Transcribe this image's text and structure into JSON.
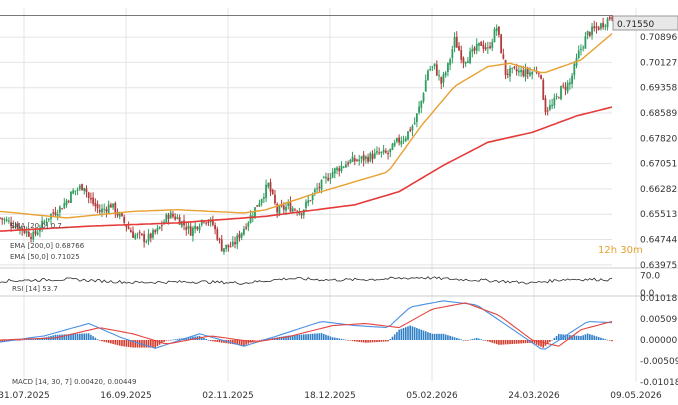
{
  "chart_data": {
    "type": "candlestick",
    "timeframe_label": "12h 30m",
    "price": {
      "last": 0.7155,
      "last_label": "0.71550",
      "ylim": [
        0.6397,
        0.7178
      ],
      "y_ticks": [
        "0.71550",
        "0.70896",
        "0.70127",
        "0.69358",
        "0.68589",
        "0.67820",
        "0.67051",
        "0.66282",
        "0.65513",
        "0.64744",
        "0.63975"
      ],
      "x_ticks": [
        "31.07.2025",
        "16.09.2025",
        "02.11.2025",
        "18.12.2025",
        "05.02.2026",
        "24.03.2026",
        "09.05.2026"
      ],
      "legend": [
        "EMA [20,0] 0.7...",
        "EMA [200,0] 0.68766",
        "EMA [50,0] 0.71025"
      ],
      "close_path": [
        [
          0,
          0.654
        ],
        [
          8,
          0.6515
        ],
        [
          15,
          0.6485
        ],
        [
          22,
          0.6545
        ],
        [
          28,
          0.6575
        ],
        [
          33,
          0.662
        ],
        [
          38,
          0.664
        ],
        [
          40,
          0.66
        ],
        [
          45,
          0.656
        ],
        [
          50,
          0.658
        ],
        [
          55,
          0.6535
        ],
        [
          60,
          0.649
        ],
        [
          66,
          0.6475
        ],
        [
          71,
          0.65
        ],
        [
          76,
          0.655
        ],
        [
          80,
          0.654
        ],
        [
          86,
          0.65
        ],
        [
          92,
          0.654
        ],
        [
          96,
          0.652
        ],
        [
          100,
          0.645
        ],
        [
          105,
          0.6455
        ],
        [
          110,
          0.651
        ],
        [
          116,
          0.658
        ],
        [
          121,
          0.664
        ],
        [
          125,
          0.656
        ],
        [
          130,
          0.6575
        ],
        [
          136,
          0.656
        ],
        [
          142,
          0.662
        ],
        [
          150,
          0.668
        ],
        [
          157,
          0.671
        ],
        [
          164,
          0.672
        ],
        [
          171,
          0.6735
        ],
        [
          175,
          0.6735
        ],
        [
          179,
          0.677
        ],
        [
          183,
          0.679
        ],
        [
          187,
          0.683
        ],
        [
          190,
          0.6895
        ],
        [
          193,
          0.699
        ],
        [
          196,
          0.7
        ],
        [
          199,
          0.695
        ],
        [
          202,
          0.7
        ],
        [
          205,
          0.708
        ],
        [
          209,
          0.702
        ],
        [
          213,
          0.704
        ],
        [
          217,
          0.707
        ],
        [
          220,
          0.705
        ],
        [
          224,
          0.712
        ],
        [
          228,
          0.698
        ],
        [
          233,
          0.6985
        ],
        [
          238,
          0.698
        ],
        [
          243,
          0.699
        ],
        [
          246,
          0.687
        ],
        [
          249,
          0.688
        ],
        [
          253,
          0.693
        ],
        [
          257,
          0.695
        ],
        [
          261,
          0.704
        ],
        [
          265,
          0.71
        ],
        [
          270,
          0.712
        ],
        [
          276,
          0.7155
        ]
      ],
      "ema_20": [
        [
          0,
          0.654
        ],
        [
          40,
          0.656
        ],
        [
          60,
          0.652
        ],
        [
          80,
          0.654
        ],
        [
          100,
          0.652
        ],
        [
          120,
          0.656
        ],
        [
          140,
          0.66
        ],
        [
          160,
          0.672
        ],
        [
          180,
          0.679
        ],
        [
          200,
          0.692
        ],
        [
          220,
          0.703
        ],
        [
          240,
          0.7
        ],
        [
          260,
          0.699
        ],
        [
          276,
          0.713
        ]
      ],
      "ema_50": [
        [
          0,
          0.656
        ],
        [
          30,
          0.654
        ],
        [
          60,
          0.656
        ],
        [
          80,
          0.6565
        ],
        [
          110,
          0.6555
        ],
        [
          120,
          0.6565
        ],
        [
          140,
          0.661
        ],
        [
          160,
          0.665
        ],
        [
          175,
          0.668
        ],
        [
          190,
          0.682
        ],
        [
          205,
          0.694
        ],
        [
          220,
          0.7
        ],
        [
          230,
          0.701
        ],
        [
          245,
          0.698
        ],
        [
          262,
          0.702
        ],
        [
          276,
          0.71
        ]
      ],
      "ema_200": [
        [
          0,
          0.65
        ],
        [
          40,
          0.6515
        ],
        [
          80,
          0.6525
        ],
        [
          120,
          0.6545
        ],
        [
          160,
          0.658
        ],
        [
          180,
          0.662
        ],
        [
          200,
          0.67
        ],
        [
          220,
          0.677
        ],
        [
          240,
          0.68
        ],
        [
          260,
          0.685
        ],
        [
          276,
          0.6877
        ]
      ]
    },
    "rsi": {
      "label": "RSI [14] 53.7",
      "value": 53.7,
      "ylim": [
        0,
        100
      ],
      "y_ticks": [
        "70.0",
        "0.0"
      ],
      "series": [
        [
          0,
          48
        ],
        [
          30,
          55
        ],
        [
          60,
          42
        ],
        [
          90,
          45
        ],
        [
          110,
          40
        ],
        [
          130,
          58
        ],
        [
          150,
          52
        ],
        [
          170,
          55
        ],
        [
          190,
          62
        ],
        [
          205,
          55
        ],
        [
          220,
          50
        ],
        [
          240,
          40
        ],
        [
          255,
          55
        ],
        [
          276,
          53.7
        ]
      ]
    },
    "macd": {
      "label": "MACD [14, 30, 7] 0.00420, 0.00449",
      "macd": 0.0042,
      "signal": 0.00449,
      "ylim": [
        -0.01018,
        0.01018
      ],
      "y_ticks": [
        "0.01018",
        "0.00509",
        "0.00000",
        "-0.00509",
        "-0.01018"
      ],
      "macd_line": [
        [
          0,
          -0.0005
        ],
        [
          20,
          0.001
        ],
        [
          40,
          0.004
        ],
        [
          55,
          0.0005
        ],
        [
          70,
          -0.002
        ],
        [
          90,
          0.0015
        ],
        [
          110,
          -0.0015
        ],
        [
          125,
          0.001
        ],
        [
          145,
          0.0045
        ],
        [
          160,
          0.0035
        ],
        [
          175,
          0.003
        ],
        [
          185,
          0.008
        ],
        [
          200,
          0.0095
        ],
        [
          215,
          0.0085
        ],
        [
          230,
          0.003
        ],
        [
          245,
          -0.0025
        ],
        [
          255,
          0.001
        ],
        [
          265,
          0.0045
        ],
        [
          276,
          0.0042
        ]
      ],
      "signal_line": [
        [
          0,
          0.0
        ],
        [
          25,
          0.0005
        ],
        [
          45,
          0.003
        ],
        [
          60,
          0.0015
        ],
        [
          75,
          -0.001
        ],
        [
          95,
          0.001
        ],
        [
          115,
          -0.0005
        ],
        [
          130,
          0.0008
        ],
        [
          150,
          0.0035
        ],
        [
          165,
          0.004
        ],
        [
          180,
          0.003
        ],
        [
          195,
          0.0075
        ],
        [
          210,
          0.009
        ],
        [
          225,
          0.006
        ],
        [
          240,
          0.0
        ],
        [
          252,
          -0.0015
        ],
        [
          262,
          0.0025
        ],
        [
          276,
          0.00449
        ]
      ]
    }
  },
  "colors": {
    "up": "#2e9d5f",
    "down": "#b23a3a",
    "ema20": "#e8a030",
    "ema200": "#e53b3b",
    "rsi": "#2a2a2a",
    "macd": "#4a90e2",
    "signal": "#e5443f",
    "hist_pos": "#2f7fc8",
    "hist_neg": "#d33b2c",
    "grid": "#e4e4e4"
  }
}
